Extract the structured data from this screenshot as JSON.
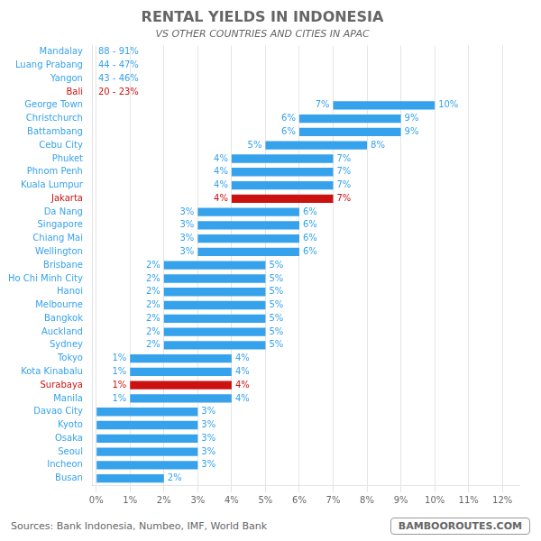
{
  "chart_data": {
    "type": "bar",
    "orientation": "horizontal",
    "title": "RENTAL YIELDS IN INDONESIA",
    "subtitle": "VS OTHER COUNTRIES AND CITIES IN APAC",
    "annotations": [
      "Sources: Bank Indonesia, Numbeo, IMF, World Bank",
      "BAMBOOROUTES.COM"
    ],
    "categories": [
      "Mandalay",
      "Luang Prabang",
      "Yangon",
      "Bali",
      "George Town",
      "Christchurch",
      "Battambang",
      "Cebu City",
      "Phuket",
      "Phnom Penh",
      "Kuala Lumpur",
      "Jakarta",
      "Da Nang",
      "Singapore",
      "Chiang Mai",
      "Wellington",
      "Brisbane",
      "Ho Chi Minh City",
      "Hanoi",
      "Melbourne",
      "Bangkok",
      "Auckland",
      "Sydney",
      "Tokyo",
      "Kota Kinabalu",
      "Surabaya",
      "Manila",
      "Davao City",
      "Kyoto",
      "Osaka",
      "Seoul",
      "Incheon",
      "Busan"
    ],
    "values": [
      null,
      null,
      null,
      null,
      [
        7,
        10
      ],
      [
        6,
        9
      ],
      [
        6,
        9
      ],
      [
        5,
        8
      ],
      [
        4,
        7
      ],
      [
        4,
        7
      ],
      [
        4,
        7
      ],
      [
        4,
        7
      ],
      [
        3,
        6
      ],
      [
        3,
        6
      ],
      [
        3,
        6
      ],
      [
        3,
        6
      ],
      [
        2,
        5
      ],
      [
        2,
        5
      ],
      [
        2,
        5
      ],
      [
        2,
        5
      ],
      [
        2,
        5
      ],
      [
        2,
        5
      ],
      [
        2,
        5
      ],
      [
        1,
        4
      ],
      [
        1,
        4
      ],
      [
        1,
        4
      ],
      [
        1,
        4
      ],
      [
        0,
        3
      ],
      [
        0,
        3
      ],
      [
        0,
        3
      ],
      [
        0,
        3
      ],
      [
        0,
        3
      ],
      [
        0,
        2
      ]
    ],
    "value_labels": [
      "88 - 91%",
      "44 - 47%",
      "43 - 46%",
      "20 - 23%",
      [
        "7%",
        "10%"
      ],
      [
        "6%",
        "9%"
      ],
      [
        "6%",
        "9%"
      ],
      [
        "5%",
        "8%"
      ],
      [
        "4%",
        "7%"
      ],
      [
        "4%",
        "7%"
      ],
      [
        "4%",
        "7%"
      ],
      [
        "4%",
        "7%"
      ],
      [
        "3%",
        "6%"
      ],
      [
        "3%",
        "6%"
      ],
      [
        "3%",
        "6%"
      ],
      [
        "3%",
        "6%"
      ],
      [
        "2%",
        "5%"
      ],
      [
        "2%",
        "5%"
      ],
      [
        "2%",
        "5%"
      ],
      [
        "2%",
        "5%"
      ],
      [
        "2%",
        "5%"
      ],
      [
        "2%",
        "5%"
      ],
      [
        "2%",
        "5%"
      ],
      [
        "1%",
        "4%"
      ],
      [
        "1%",
        "4%"
      ],
      [
        "1%",
        "4%"
      ],
      [
        "1%",
        "4%"
      ],
      [
        null,
        "3%"
      ],
      [
        null,
        "3%"
      ],
      [
        null,
        "3%"
      ],
      [
        null,
        "3%"
      ],
      [
        null,
        "3%"
      ],
      [
        null,
        "2%"
      ]
    ],
    "colors": [
      "#36a2eb",
      "#36a2eb",
      "#36a2eb",
      "#cc1111",
      "#36a2eb",
      "#36a2eb",
      "#36a2eb",
      "#36a2eb",
      "#36a2eb",
      "#36a2eb",
      "#36a2eb",
      "#cc1111",
      "#36a2eb",
      "#36a2eb",
      "#36a2eb",
      "#36a2eb",
      "#36a2eb",
      "#36a2eb",
      "#36a2eb",
      "#36a2eb",
      "#36a2eb",
      "#36a2eb",
      "#36a2eb",
      "#36a2eb",
      "#36a2eb",
      "#cc1111",
      "#36a2eb",
      "#36a2eb",
      "#36a2eb",
      "#36a2eb",
      "#36a2eb",
      "#36a2eb",
      "#36a2eb"
    ],
    "xlim": [
      -0.1,
      12.5
    ],
    "xticks": [
      {
        "value": 0,
        "label": "0%"
      },
      {
        "value": 1,
        "label": "1%"
      },
      {
        "value": 2,
        "label": "2%"
      },
      {
        "value": 3,
        "label": "3%"
      },
      {
        "value": 4,
        "label": "4%"
      },
      {
        "value": 5,
        "label": "5%"
      },
      {
        "value": 6,
        "label": "6%"
      },
      {
        "value": 7,
        "label": "7%"
      },
      {
        "value": 8,
        "label": "8%"
      },
      {
        "value": 9,
        "label": "9%"
      },
      {
        "value": 10,
        "label": "10%"
      },
      {
        "value": 11,
        "label": "11%"
      },
      {
        "value": 12,
        "label": "12%"
      }
    ],
    "grid": true
  }
}
